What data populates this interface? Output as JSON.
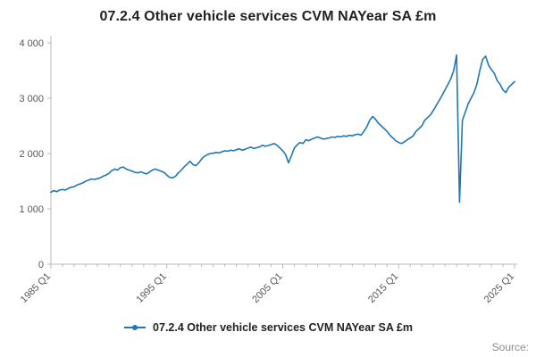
{
  "title": "07.2.4 Other vehicle services CVM NAYear SA £m",
  "legend": {
    "label": "07.2.4 Other vehicle services CVM NAYear SA £m"
  },
  "source": "Source:",
  "chart_data": {
    "type": "line",
    "title": "07.2.4 Other vehicle services CVM NAYear SA £m",
    "series_name": "07.2.4 Other vehicle services CVM NAYear SA £m",
    "x_start": "1985 Q1",
    "x_end": "2025 Q1",
    "x_frequency": "quarterly",
    "xlabel": "",
    "ylabel": "",
    "ylim": [
      0,
      4000
    ],
    "grid": false,
    "legend_position": "bottom",
    "line_color": "#1f77b4",
    "y_ticks": [
      0,
      1000,
      2000,
      3000,
      4000
    ],
    "y_tick_labels": [
      "0",
      "1 000",
      "2 000",
      "3 000",
      "4 000"
    ],
    "x_tick_indices": [
      0,
      40,
      80,
      120,
      160
    ],
    "x_tick_labels": [
      "1985 Q1",
      "1995 Q1",
      "2005 Q1",
      "2015 Q1",
      "2025 Q1"
    ],
    "values": [
      1300,
      1330,
      1310,
      1340,
      1350,
      1340,
      1370,
      1390,
      1400,
      1430,
      1450,
      1470,
      1500,
      1520,
      1540,
      1530,
      1545,
      1560,
      1590,
      1610,
      1640,
      1690,
      1720,
      1700,
      1745,
      1755,
      1720,
      1700,
      1680,
      1660,
      1650,
      1670,
      1650,
      1630,
      1665,
      1700,
      1720,
      1700,
      1680,
      1660,
      1610,
      1570,
      1560,
      1590,
      1650,
      1700,
      1760,
      1810,
      1860,
      1800,
      1780,
      1830,
      1900,
      1950,
      1980,
      2000,
      2005,
      2020,
      2010,
      2030,
      2050,
      2040,
      2060,
      2050,
      2070,
      2085,
      2060,
      2075,
      2100,
      2115,
      2090,
      2105,
      2120,
      2150,
      2130,
      2145,
      2160,
      2180,
      2150,
      2100,
      2050,
      1980,
      1830,
      1960,
      2100,
      2160,
      2200,
      2180,
      2250,
      2230,
      2260,
      2280,
      2300,
      2280,
      2260,
      2270,
      2280,
      2300,
      2290,
      2310,
      2300,
      2320,
      2310,
      2330,
      2320,
      2340,
      2350,
      2330,
      2400,
      2480,
      2600,
      2670,
      2620,
      2550,
      2500,
      2450,
      2400,
      2330,
      2280,
      2230,
      2200,
      2180,
      2210,
      2250,
      2280,
      2320,
      2400,
      2450,
      2500,
      2600,
      2650,
      2700,
      2780,
      2870,
      2960,
      3050,
      3150,
      3250,
      3350,
      3500,
      3780,
      1120,
      2600,
      2750,
      2900,
      3000,
      3100,
      3250,
      3500,
      3700,
      3760,
      3600,
      3520,
      3450,
      3320,
      3250,
      3150,
      3100,
      3200,
      3250,
      3300
    ]
  }
}
